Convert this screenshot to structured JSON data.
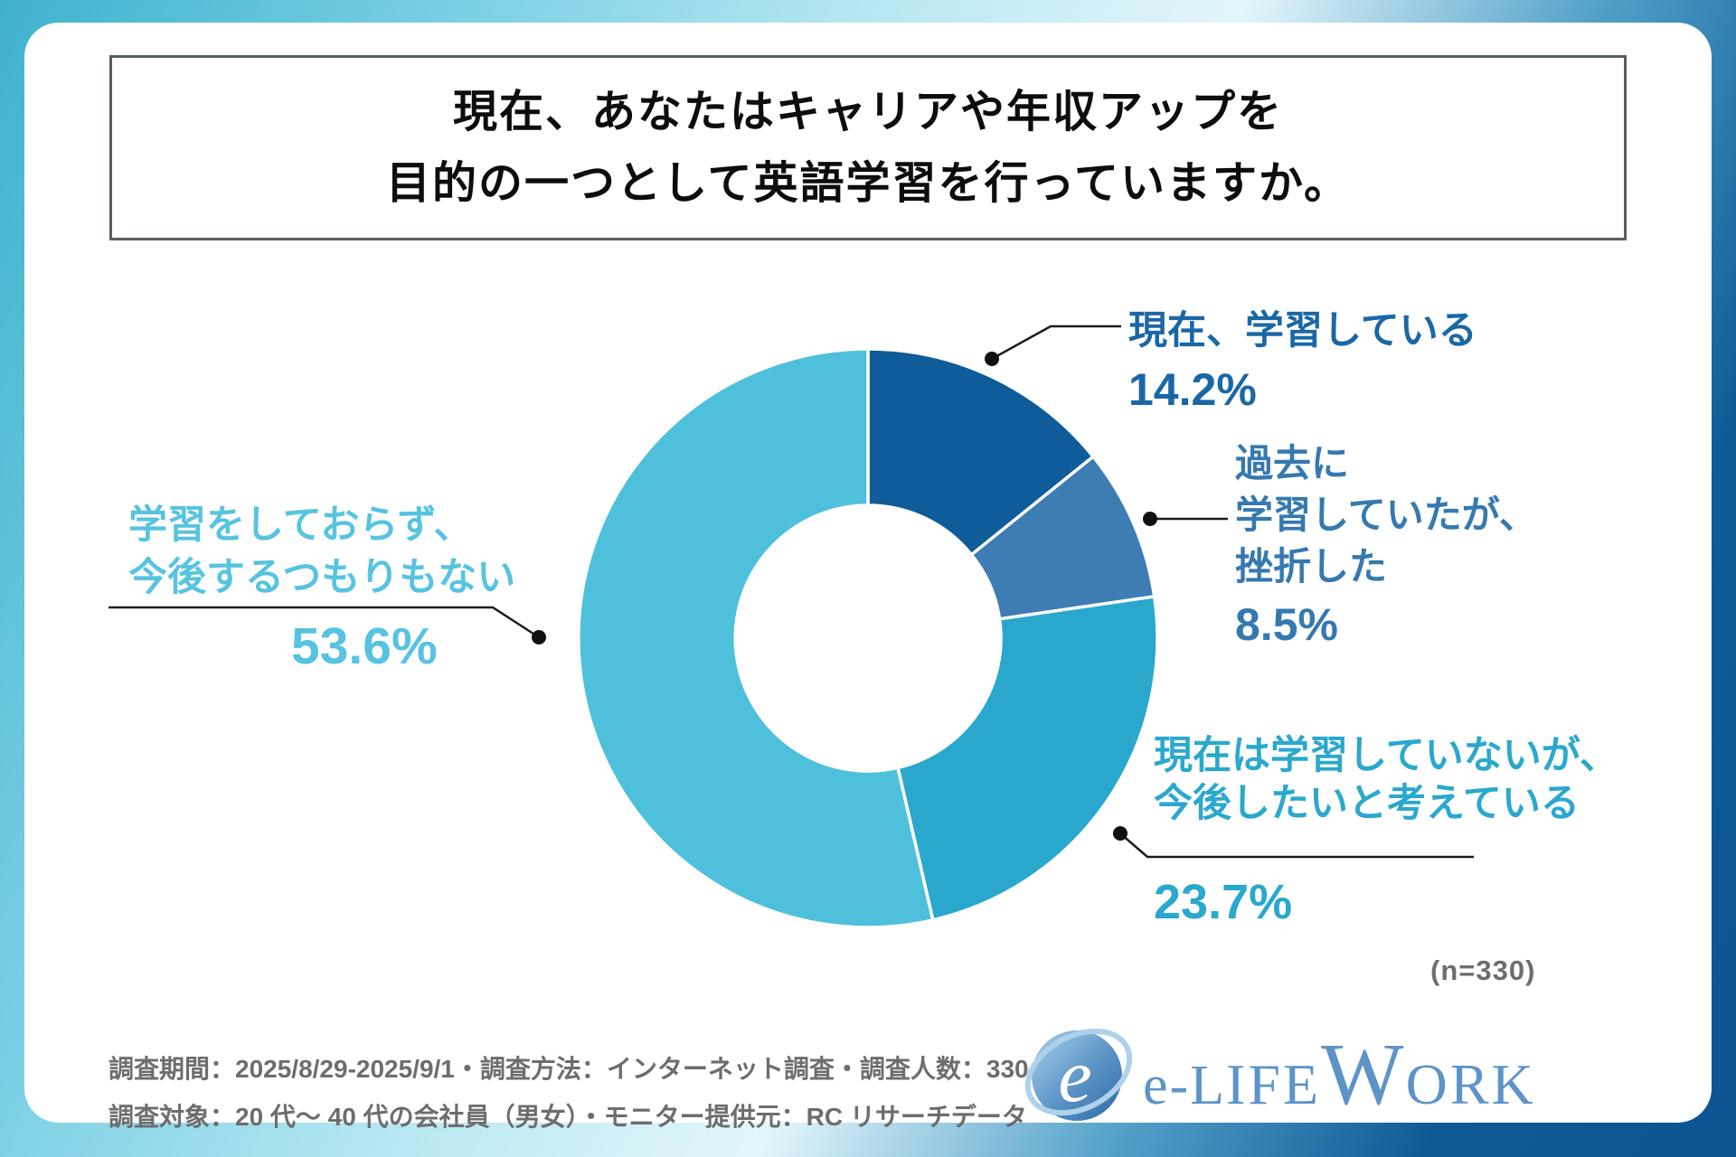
{
  "title": {
    "line1": "現在、あなたはキャリアや年収アップを",
    "line2": "目的の一つとして英語学習を行っていますか。"
  },
  "chart_data": {
    "type": "pie",
    "subtype": "donut",
    "title": "現在、あなたはキャリアや年収アップを目的の一つとして英語学習を行っていますか。",
    "start_angle_deg": 0,
    "clockwise": true,
    "donut_inner_ratio": 0.46,
    "sample_note": "(n=330)",
    "segments": [
      {
        "label": "現在、学習している",
        "lines": [
          "現在、学習している"
        ],
        "value": 14.2,
        "pct": "14.2%",
        "color": "#0e5c99",
        "text_color": "#1a67a5"
      },
      {
        "label": "過去に学習していたが、挫折した",
        "lines": [
          "過去に",
          "学習していたが、",
          "挫折した"
        ],
        "value": 8.5,
        "pct": "8.5%",
        "color": "#3d7db3",
        "text_color": "#3579af"
      },
      {
        "label": "現在は学習していないが、今後したいと考えている",
        "lines": [
          "現在は学習していないが、",
          "今後したいと考えている"
        ],
        "value": 23.7,
        "pct": "23.7%",
        "color": "#29a7cc",
        "text_color": "#2aa8cd"
      },
      {
        "label": "学習をしておらず、今後するつもりもない",
        "lines": [
          "学習をしておらず、",
          "今後するつもりもない"
        ],
        "value": 53.6,
        "pct": "53.6%",
        "color": "#4ec0dc",
        "text_color": "#57c3e0"
      }
    ]
  },
  "note": "(n=330)",
  "footer": {
    "line1": "調査期間：2025/8/29-2025/9/1・調査方法：インターネット調査・調査人数：330 名",
    "line2": "調査対象：20 代～ 40 代の会社員（男女）・モニター提供元：RC リサーチデータ"
  },
  "logo": {
    "name": "e-LIFE WORK",
    "part1": "e-L",
    "part2": "IFE",
    "part3": "W",
    "part4": "ORK",
    "icon_letter": "e"
  }
}
